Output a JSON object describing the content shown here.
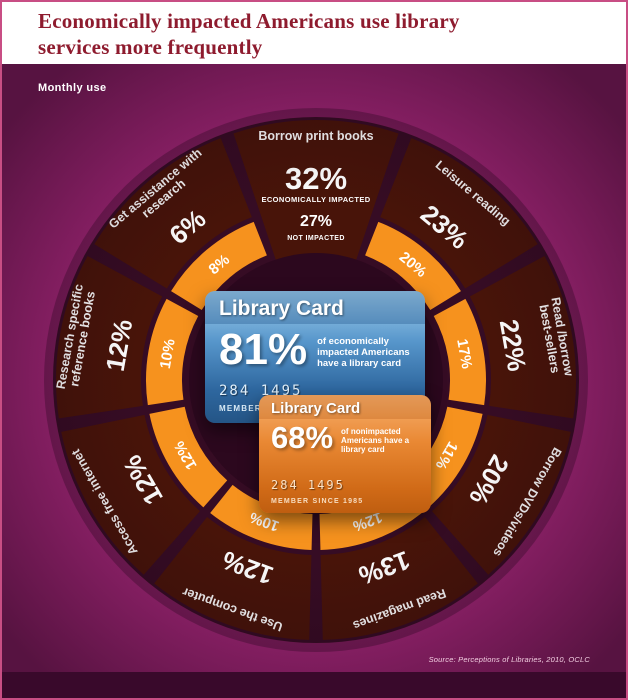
{
  "page": {
    "title_line1": "Economically impacted Americans use library",
    "title_line2": "services more frequently",
    "subtitle": "Monthly use",
    "source": "Source: Perceptions of Libraries, 2010, OCLC"
  },
  "colors": {
    "background": "#9B2472",
    "header_bg": "#FFFFFF",
    "title_text": "#8E1B2E",
    "wedge": "#481409",
    "ring": "#F6921E",
    "backdrop": "#360C24",
    "center": "#2C081E",
    "bottom_band": "#39092B",
    "card_blue": "#2E679F",
    "card_orange": "#D06A17"
  },
  "chart_data": {
    "type": "radial-bar",
    "title": "Monthly use",
    "unit": "%",
    "series_labels": {
      "impacted": "ECONOMICALLY IMPACTED",
      "not_impacted": "NOT IMPACTED"
    },
    "categories": [
      "Borrow print books",
      "Leisure reading",
      "Read /borrow best-sellers",
      "Borrow DVDs/videos",
      "Read magazines",
      "Use the computer",
      "Access free internet",
      "Research specific reference books",
      "Get assistance with research"
    ],
    "series": [
      {
        "name": "Economically impacted",
        "values": [
          32,
          23,
          22,
          20,
          13,
          12,
          12,
          12,
          6
        ]
      },
      {
        "name": "Not impacted",
        "values": [
          27,
          20,
          17,
          11,
          12,
          10,
          12,
          10,
          8
        ]
      }
    ],
    "segments": [
      {
        "label_lines": [
          "Borrow print books"
        ],
        "impacted": 32,
        "not_impacted": 27
      },
      {
        "label_lines": [
          "Leisure reading"
        ],
        "impacted": 23,
        "not_impacted": 20
      },
      {
        "label_lines": [
          "Read /borrow",
          "best-sellers"
        ],
        "impacted": 22,
        "not_impacted": 17
      },
      {
        "label_lines": [
          "Borrow DVDs/videos"
        ],
        "impacted": 20,
        "not_impacted": 11
      },
      {
        "label_lines": [
          "Read magazines"
        ],
        "impacted": 13,
        "not_impacted": 12
      },
      {
        "label_lines": [
          "Use the computer"
        ],
        "impacted": 12,
        "not_impacted": 10
      },
      {
        "label_lines": [
          "Access free internet"
        ],
        "impacted": 12,
        "not_impacted": 12
      },
      {
        "label_lines": [
          "Research specific",
          "reference books"
        ],
        "impacted": 12,
        "not_impacted": 10
      },
      {
        "label_lines": [
          "Get assistance with",
          "research"
        ],
        "impacted": 6,
        "not_impacted": 8
      }
    ],
    "cards": {
      "impacted": {
        "title": "Library Card",
        "pct": "81%",
        "desc": "of economically impacted Americans have a library card",
        "number": "284 1495",
        "member": "MEMBER SINCE 1985"
      },
      "not_impacted": {
        "title": "Library Card",
        "pct": "68%",
        "desc": "of nonimpacted Americans have a library card",
        "number": "284 1495",
        "member": "MEMBER SINCE 1985"
      }
    }
  }
}
